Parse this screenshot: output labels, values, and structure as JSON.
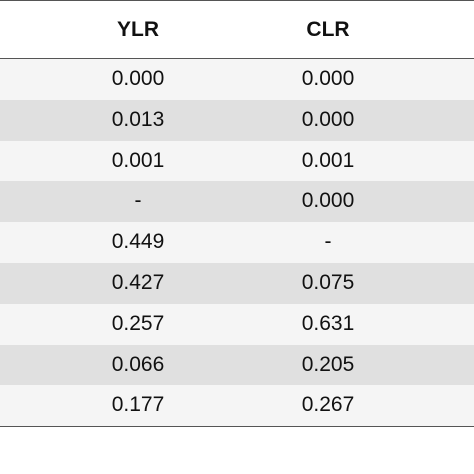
{
  "table": {
    "columns": [
      "YLR",
      "CLR"
    ],
    "rows": [
      [
        "0.000",
        "0.000"
      ],
      [
        "0.013",
        "0.000"
      ],
      [
        "0.001",
        "0.001"
      ],
      [
        "-",
        "0.000"
      ],
      [
        "0.449",
        "-"
      ],
      [
        "0.427",
        "0.075"
      ],
      [
        "0.257",
        "0.631"
      ],
      [
        "0.066",
        "0.205"
      ],
      [
        "0.177",
        "0.267"
      ]
    ]
  }
}
